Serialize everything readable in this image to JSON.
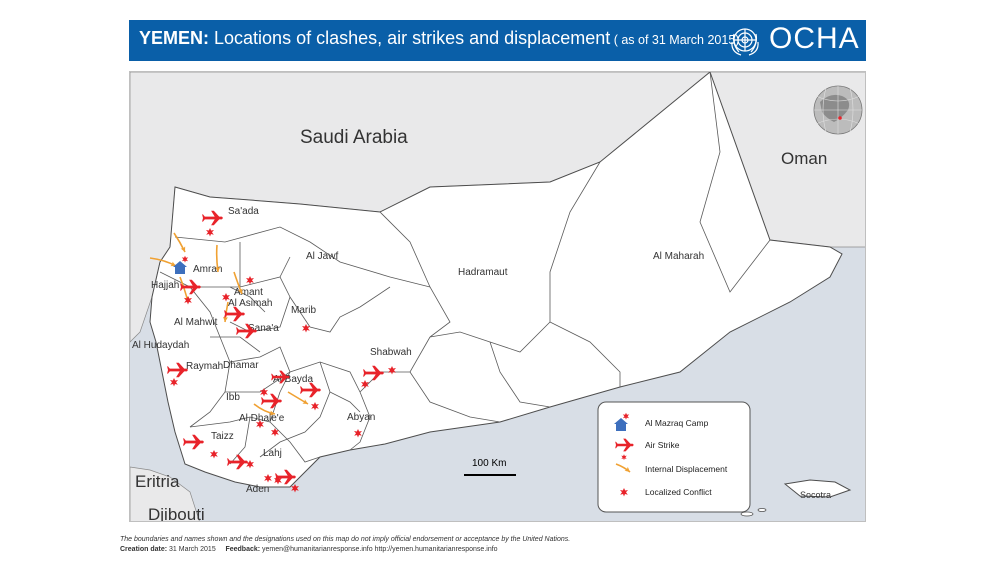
{
  "header": {
    "country": "YEMEN:",
    "title": " Locations of clashes, air strikes and displacement",
    "date": " ( as of 31 March 2015)",
    "brand": "OCHA",
    "banner_color": "#0a5fa8"
  },
  "map": {
    "countries": [
      "Saudi Arabia",
      "Oman",
      "Eritria",
      "Djibouti",
      "Socotra"
    ],
    "governorates": [
      "Sa'ada",
      "Al Jawf",
      "Amran",
      "Hajjah",
      "Amant",
      "Al Asimah",
      "Marib",
      "Al Mahwit",
      "Sana'a",
      "Al Hudaydah",
      "Raymah",
      "Dhamar",
      "Al Bayda",
      "Ibb",
      "Al Dhale'e",
      "Taizz",
      "Lahj",
      "Aden",
      "Abyan",
      "Shabwah",
      "Hadramaut",
      "Al Maharah"
    ],
    "scale_label": "100 Km",
    "colors": {
      "land": "#ffffff",
      "neighbor": "#e9e9ea",
      "sea": "#d8dee6",
      "border": "#5a5a5a",
      "marker": "#e8232a",
      "camp": "#3d6fbd",
      "arrow": "#f0a132"
    }
  },
  "legend": {
    "items": [
      {
        "label": "Al Mazraq Camp",
        "icon": "camp-icon"
      },
      {
        "label": "Air Strike",
        "icon": "airplane-icon"
      },
      {
        "label": "Internal Displacement",
        "icon": "arrow-icon"
      },
      {
        "label": "Localized Conflict",
        "icon": "explosion-icon"
      }
    ]
  },
  "footer": {
    "disclaimer": "The boundaries and names shown and the designations used on this map do not imply official endorsement or acceptance by the United Nations.",
    "creation_label": "Creation date:",
    "creation_value": "31 March 2015",
    "feedback_label": "Feedback:",
    "feedback_value": "yemen@humanitarianresponse.info   http://yemen.humanitarianresponse.info"
  }
}
